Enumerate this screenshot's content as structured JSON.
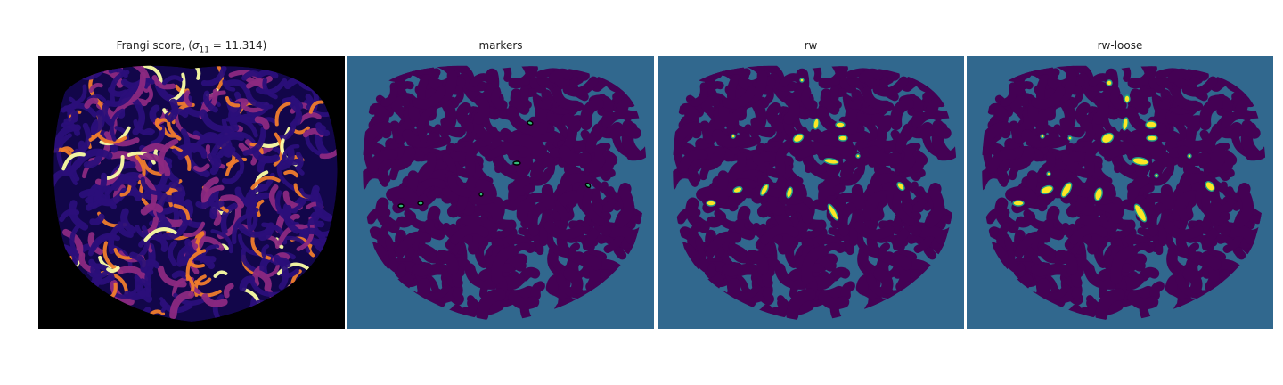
{
  "figure": {
    "panels": [
      {
        "id": "frangi",
        "title_prefix": "Frangi score, (",
        "title_symbol": "σ",
        "title_subscript": "11",
        "title_suffix": " = 11.314)"
      },
      {
        "id": "markers",
        "title": "markers"
      },
      {
        "id": "rw",
        "title": "rw"
      },
      {
        "id": "rw-loose",
        "title": "rw-loose"
      }
    ]
  },
  "colors": {
    "background_dark": "#000000",
    "field_teal": "#31688e",
    "mask_purple": "#440154",
    "marker_green": "#35b779",
    "highlight_yellow": "#fde725",
    "frangi_low": "#2b0f7a",
    "frangi_mid": "#8c2981",
    "frangi_high": "#fcffa4"
  }
}
